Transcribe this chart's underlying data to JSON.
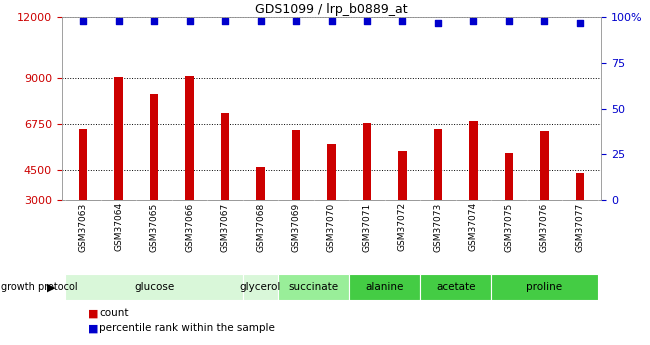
{
  "title": "GDS1099 / lrp_b0889_at",
  "samples": [
    "GSM37063",
    "GSM37064",
    "GSM37065",
    "GSM37066",
    "GSM37067",
    "GSM37068",
    "GSM37069",
    "GSM37070",
    "GSM37071",
    "GSM37072",
    "GSM37073",
    "GSM37074",
    "GSM37075",
    "GSM37076",
    "GSM37077"
  ],
  "counts": [
    6500,
    9050,
    8200,
    9100,
    7300,
    4650,
    6450,
    5750,
    6800,
    5400,
    6500,
    6900,
    5300,
    6400,
    4350
  ],
  "percentiles": [
    98,
    98,
    98,
    98,
    98,
    98,
    98,
    98,
    98,
    98,
    97,
    98,
    98,
    98,
    97
  ],
  "ylim_left": [
    3000,
    12000
  ],
  "ylim_right": [
    0,
    100
  ],
  "yticks_left": [
    3000,
    4500,
    6750,
    9000,
    12000
  ],
  "yticks_right": [
    0,
    25,
    50,
    75,
    100
  ],
  "bar_color": "#cc0000",
  "dot_color": "#0000cc",
  "group_defs": [
    {
      "label": "glucose",
      "start": 0,
      "end": 4,
      "color": "#d9f7d9"
    },
    {
      "label": "glycerol",
      "start": 5,
      "end": 5,
      "color": "#d9f7d9"
    },
    {
      "label": "succinate",
      "start": 6,
      "end": 7,
      "color": "#99ee99"
    },
    {
      "label": "alanine",
      "start": 8,
      "end": 9,
      "color": "#44cc44"
    },
    {
      "label": "acetate",
      "start": 10,
      "end": 11,
      "color": "#44cc44"
    },
    {
      "label": "proline",
      "start": 12,
      "end": 14,
      "color": "#44cc44"
    }
  ],
  "background_color": "#ffffff",
  "tick_label_color_left": "#cc0000",
  "tick_label_color_right": "#0000cc",
  "bar_width": 0.25
}
